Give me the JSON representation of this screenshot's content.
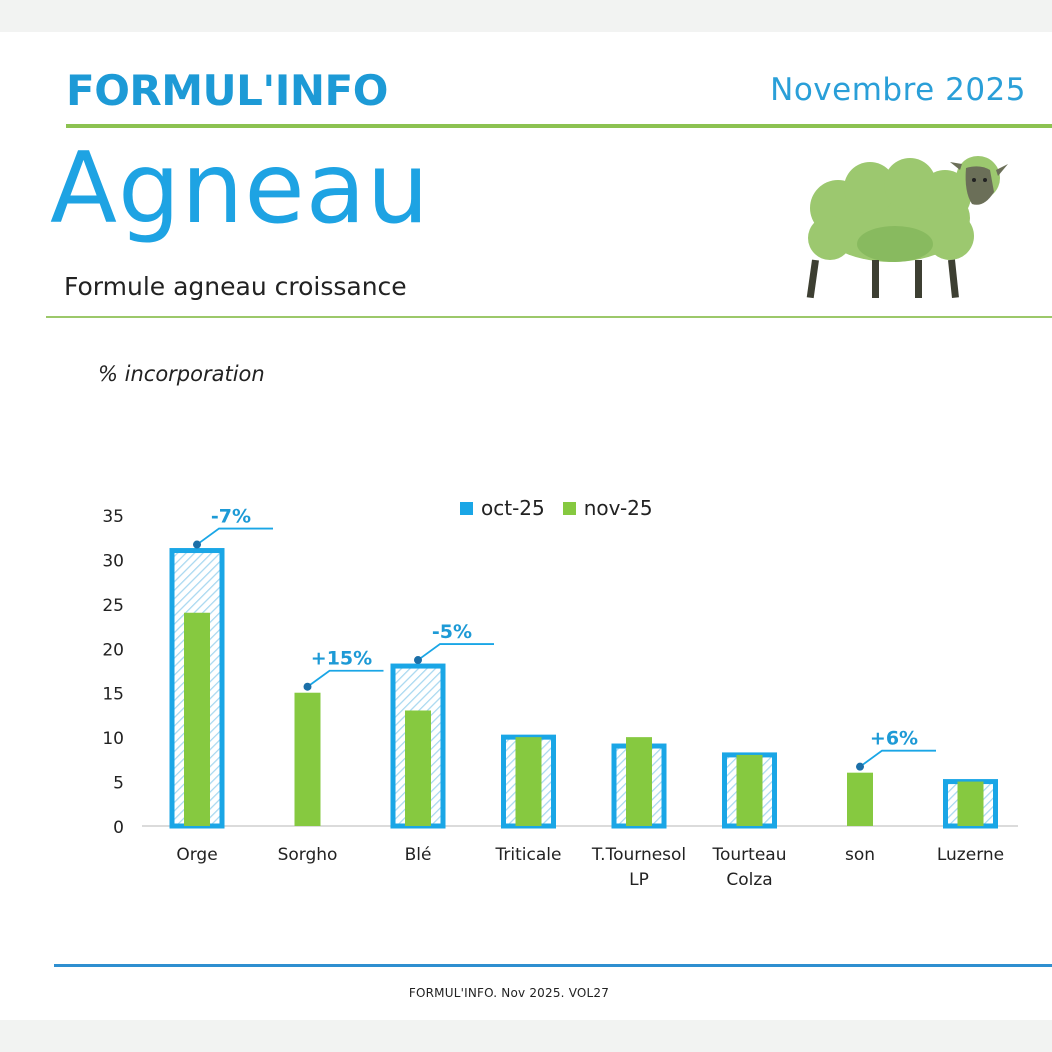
{
  "header": {
    "brand": "FORMUL'INFO",
    "month": "Novembre 2025",
    "title": "Agneau",
    "subtitle": "Formule agneau croissance"
  },
  "footer": {
    "text": "FORMUL'INFO. Nov 2025. VOL27"
  },
  "colors": {
    "oct": "#1aa6e6",
    "nov": "#86c940",
    "brand": "#1d9ad6",
    "rule": "#8cc251"
  },
  "icons": {
    "illustration": "sheep-icon"
  },
  "chart_data": {
    "type": "bar",
    "ylabel": "% incorporation",
    "xlabel": "",
    "ylim": [
      0,
      35
    ],
    "yticks": [
      0,
      5,
      10,
      15,
      20,
      25,
      30,
      35
    ],
    "categories": [
      {
        "label": "Orge",
        "label2": ""
      },
      {
        "label": "Sorgho",
        "label2": ""
      },
      {
        "label": "Blé",
        "label2": ""
      },
      {
        "label": "Triticale",
        "label2": ""
      },
      {
        "label": "T.Tournesol",
        "label2": "LP"
      },
      {
        "label": "Tourteau",
        "label2": "Colza"
      },
      {
        "label": "son",
        "label2": ""
      },
      {
        "label": "Luzerne",
        "label2": ""
      }
    ],
    "series": [
      {
        "name": "oct-25",
        "values": [
          31,
          0,
          18,
          10,
          9,
          8,
          0,
          5
        ]
      },
      {
        "name": "nov-25",
        "values": [
          24,
          15,
          13,
          10,
          10,
          8,
          6,
          5
        ]
      }
    ],
    "annotations": [
      {
        "category": "Orge",
        "text": "-7%"
      },
      {
        "category": "Sorgho",
        "text": "+15%"
      },
      {
        "category": "Blé",
        "text": "-5%"
      },
      {
        "category": "son",
        "text": "+6%"
      }
    ],
    "legend": "top-center",
    "grid": false
  }
}
